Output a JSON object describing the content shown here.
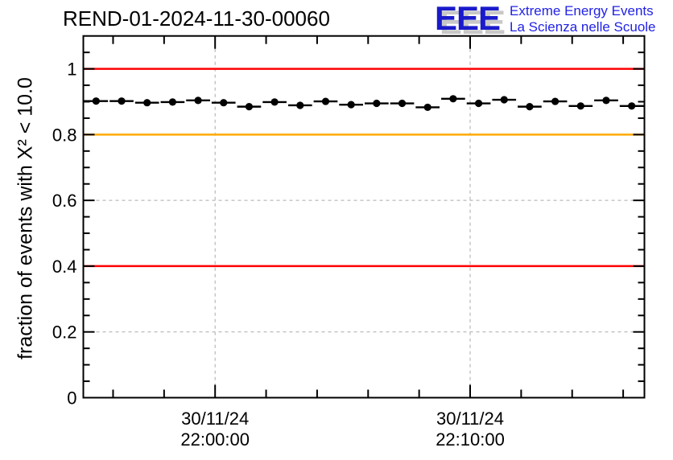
{
  "header": {
    "title": "REND-01-2024-11-30-00060"
  },
  "logo": {
    "acronym": "EEE",
    "line1": "Extreme Energy Events",
    "line2": "La Scienza nelle Scuole",
    "acronym_color": "#1a1acc",
    "subtitle_color": "#2222e6",
    "shadow_color": "#c8c8c8"
  },
  "chart_data": {
    "type": "scatter",
    "title": "REND-01-2024-11-30-00060",
    "xlabel": "",
    "ylabel": "fraction of events with X² < 10.0",
    "ylim": [
      0,
      1.1
    ],
    "xlim_minutes": [
      0,
      22
    ],
    "grid": {
      "show": true,
      "color": "#aaaaaa",
      "dash": "4 4"
    },
    "frame_color": "#000000",
    "y_major_ticks": [
      {
        "v": 0.0,
        "label": "0"
      },
      {
        "v": 0.2,
        "label": "0.2"
      },
      {
        "v": 0.4,
        "label": "0.4"
      },
      {
        "v": 0.6,
        "label": "0.6"
      },
      {
        "v": 0.8,
        "label": "0.8"
      },
      {
        "v": 1.0,
        "label": "1"
      }
    ],
    "y_minor_step": 0.05,
    "x_major_ticks": [
      {
        "minute": 5.1667,
        "label_date": "30/11/24",
        "label_time": "22:00:00"
      },
      {
        "minute": 15.1667,
        "label_date": "30/11/24",
        "label_time": "22:10:00"
      }
    ],
    "x_minor_ticks_minutes": [
      1.1667,
      3.1667,
      7.1667,
      9.1667,
      11.1667,
      13.1667,
      17.1667,
      19.1667,
      21.1667
    ],
    "reference_lines": [
      {
        "y": 1.0,
        "color": "#ff0000"
      },
      {
        "y": 0.8,
        "color": "#ffaa00"
      },
      {
        "y": 0.4,
        "color": "#ff0000"
      }
    ],
    "series": [
      {
        "name": "fraction of good-chi2 events per minute",
        "marker": "filled-circle",
        "color": "#000000",
        "xerr_minutes": 0.5,
        "x_minutes": [
          0.5,
          1.5,
          2.5,
          3.5,
          4.5,
          5.5,
          6.5,
          7.5,
          8.5,
          9.5,
          10.5,
          11.5,
          12.5,
          13.5,
          14.5,
          15.5,
          16.5,
          17.5,
          18.5,
          19.5,
          20.5,
          21.5
        ],
        "y": [
          0.902,
          0.902,
          0.897,
          0.899,
          0.904,
          0.897,
          0.885,
          0.899,
          0.889,
          0.901,
          0.891,
          0.895,
          0.895,
          0.883,
          0.909,
          0.895,
          0.906,
          0.885,
          0.901,
          0.887,
          0.904,
          0.887
        ]
      }
    ]
  }
}
